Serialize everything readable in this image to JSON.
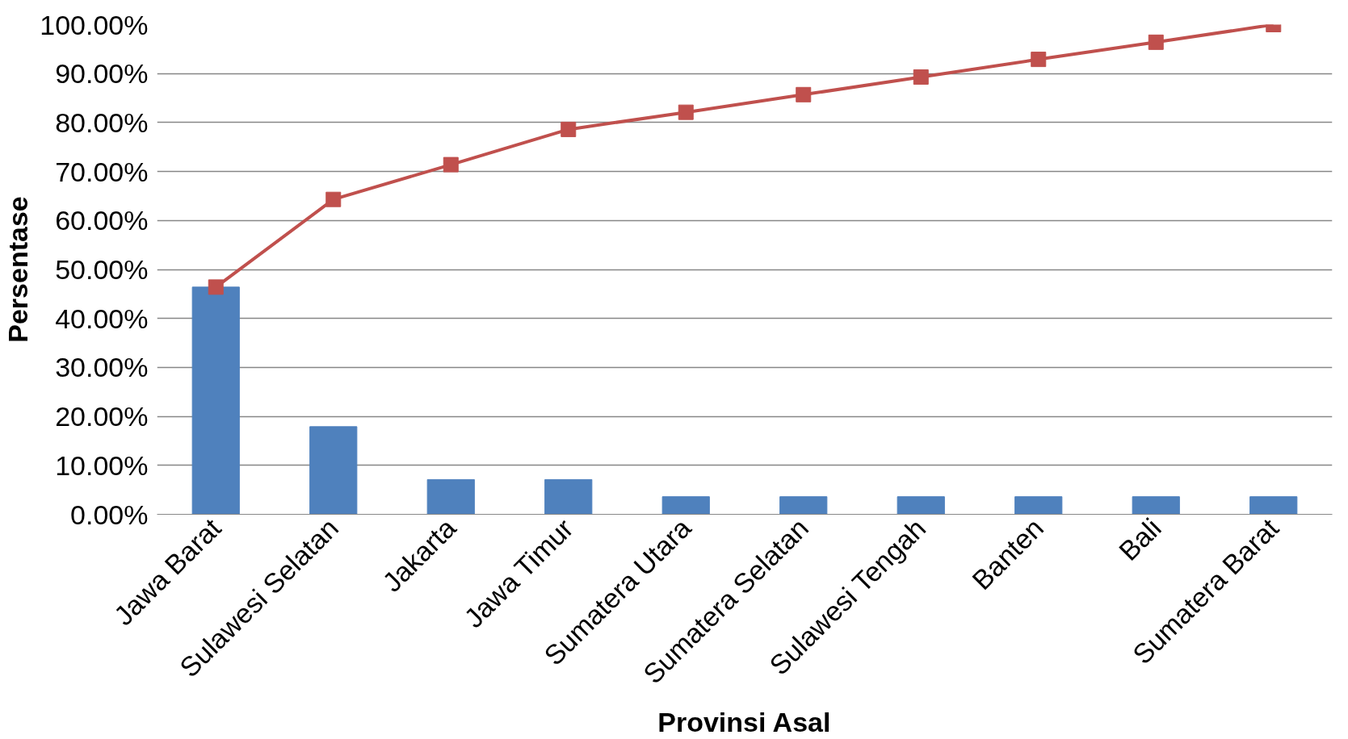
{
  "chart_data": {
    "type": "bar",
    "xlabel": "Provinsi Asal",
    "ylabel": "Persentase",
    "categories": [
      "Jawa Barat",
      "Sulawesi Selatan",
      "Jakarta",
      "Jawa Timur",
      "Sumatera Utara",
      "Sumatera Selatan",
      "Sulawesi Tengah",
      "Banten",
      "Bali",
      "Sumatera Barat"
    ],
    "series": [
      {
        "color": "#4f81bd",
        "values": [
          46.4,
          17.9,
          7.1,
          7.1,
          3.6,
          3.6,
          3.6,
          3.6,
          3.6,
          3.6
        ]
      },
      {
        "type": "line",
        "color": "#c0504d",
        "marker": "square",
        "values": [
          46.4,
          64.3,
          71.4,
          78.6,
          82.1,
          85.7,
          89.3,
          92.9,
          96.4,
          100.0
        ]
      }
    ],
    "ylim": [
      0,
      100
    ],
    "yticks": [
      {
        "value": 0,
        "label": "0.00%"
      },
      {
        "value": 10,
        "label": "10.00%"
      },
      {
        "value": 20,
        "label": "20.00%"
      },
      {
        "value": 30,
        "label": "30.00%"
      },
      {
        "value": 40,
        "label": "40.00%"
      },
      {
        "value": 50,
        "label": "50.00%"
      },
      {
        "value": 60,
        "label": "60.00%"
      },
      {
        "value": 70,
        "label": "70.00%"
      },
      {
        "value": 80,
        "label": "80.00%"
      },
      {
        "value": 90,
        "label": "90.00%"
      },
      {
        "value": 100,
        "label": "100.00%"
      }
    ],
    "grid": "y"
  }
}
